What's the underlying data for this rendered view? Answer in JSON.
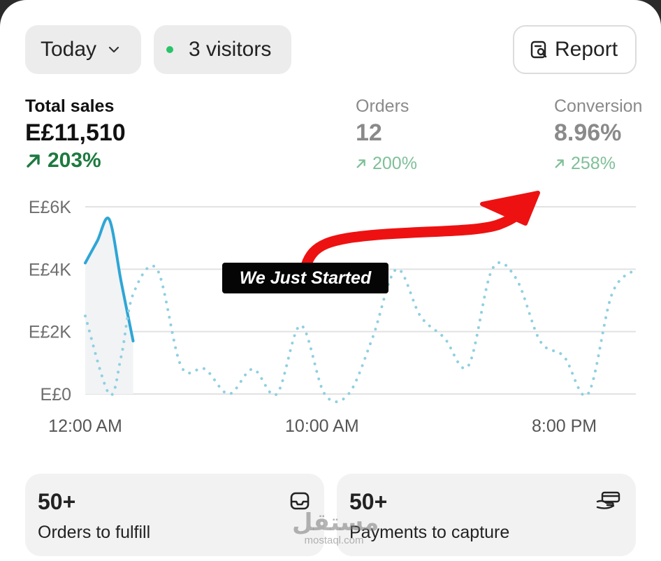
{
  "toolbar": {
    "range_label": "Today",
    "visitors_label": "3 visitors",
    "report_label": "Report"
  },
  "metrics": {
    "total_sales": {
      "label": "Total sales",
      "value": "E£11,510",
      "change": "203%"
    },
    "orders": {
      "label": "Orders",
      "value": "12",
      "change": "200%"
    },
    "conversion": {
      "label": "Conversion",
      "value": "8.96%",
      "change": "258%"
    }
  },
  "chart_data": {
    "type": "line",
    "y_ticks": [
      "E£6K",
      "E£4K",
      "E£2K",
      "E£0"
    ],
    "ylim": [
      0,
      6000
    ],
    "x_ticks": [
      "12:00 AM",
      "10:00 AM",
      "8:00 PM"
    ],
    "xlim": [
      0,
      23
    ],
    "grid": true,
    "series": [
      {
        "style": "solid",
        "color": "#2ea6d6",
        "points": [
          [
            0,
            4200
          ],
          [
            0.5,
            4900
          ],
          [
            1,
            5600
          ],
          [
            1.5,
            3600
          ],
          [
            2,
            1700
          ]
        ]
      },
      {
        "style": "dotted",
        "color": "#8fd0e0",
        "points": [
          [
            0,
            2500
          ],
          [
            1,
            0
          ],
          [
            1.5,
            1200
          ],
          [
            2,
            3200
          ],
          [
            3,
            4000
          ],
          [
            4,
            900
          ],
          [
            5,
            800
          ],
          [
            6,
            0
          ],
          [
            7,
            800
          ],
          [
            8,
            0
          ],
          [
            9,
            2200
          ],
          [
            10,
            0
          ],
          [
            11,
            0
          ],
          [
            12,
            1800
          ],
          [
            13,
            4000
          ],
          [
            14,
            2500
          ],
          [
            15,
            1800
          ],
          [
            16,
            900
          ],
          [
            17,
            4000
          ],
          [
            18,
            3700
          ],
          [
            19,
            1700
          ],
          [
            20,
            1200
          ],
          [
            21,
            0
          ],
          [
            22,
            3200
          ],
          [
            23,
            4000
          ]
        ]
      }
    ]
  },
  "annotation": {
    "label": "We Just Started",
    "arrow_color": "#ee1111"
  },
  "cards": [
    {
      "count": "50+",
      "caption": "Orders to fulfill",
      "icon": "inbox-icon"
    },
    {
      "count": "50+",
      "caption": "Payments to capture",
      "icon": "card-in-hand-icon"
    }
  ],
  "watermark": {
    "main": "مستقل",
    "sub": "mostaql.com"
  },
  "colors": {
    "positive": "#1d7a3f",
    "positive_muted": "#7fbf98",
    "live_dot": "#29c46a"
  }
}
